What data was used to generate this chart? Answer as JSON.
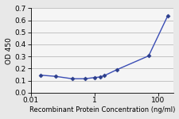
{
  "x": [
    0.02,
    0.06,
    0.2,
    0.5,
    1.0,
    1.5,
    2.0,
    5.0,
    50.0,
    200.0
  ],
  "y": [
    0.145,
    0.135,
    0.115,
    0.115,
    0.125,
    0.13,
    0.14,
    0.19,
    0.305,
    0.64
  ],
  "line_color": "#3a4db5",
  "marker_color": "#2c3e8c",
  "marker": "D",
  "marker_size": 2.5,
  "line_width": 1.0,
  "xlabel": "Recombinant Protein Concentration (ng/ml)",
  "ylabel": "OD 450",
  "ylim": [
    0,
    0.7
  ],
  "yticks": [
    0,
    0.1,
    0.2,
    0.3,
    0.4,
    0.5,
    0.6,
    0.7
  ],
  "xlim_log": [
    0.01,
    300
  ],
  "xtick_vals": [
    0.01,
    1,
    100
  ],
  "xtick_labels": [
    "0.01",
    "1",
    "100"
  ],
  "background_color": "#e8e8e8",
  "plot_bg_color": "#f5f5f5",
  "xlabel_fontsize": 6.0,
  "ylabel_fontsize": 6.5,
  "tick_fontsize": 6.5,
  "grid_color": "#bbbbbb"
}
